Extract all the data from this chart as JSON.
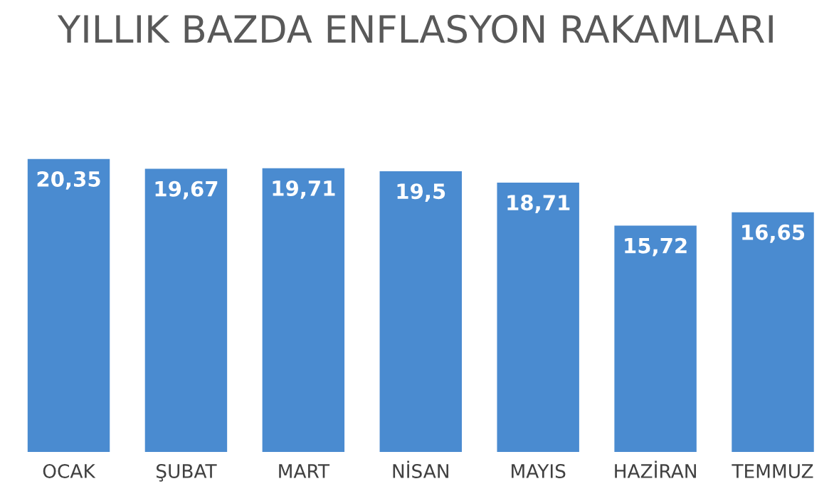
{
  "chart_data": {
    "type": "bar",
    "title": "YILLIK BAZDA ENFLASYON RAKAMLARI",
    "categories": [
      "OCAK",
      "ŞUBAT",
      "MART",
      "NİSAN",
      "MAYIS",
      "HAZİRAN",
      "TEMMUZ"
    ],
    "values": [
      20.35,
      19.67,
      19.71,
      19.5,
      18.71,
      15.72,
      16.65
    ],
    "value_labels": [
      "20,35",
      "19,67",
      "19,71",
      "19,5",
      "18,71",
      "15,72",
      "16,65"
    ],
    "color": "#4a8bd0"
  }
}
